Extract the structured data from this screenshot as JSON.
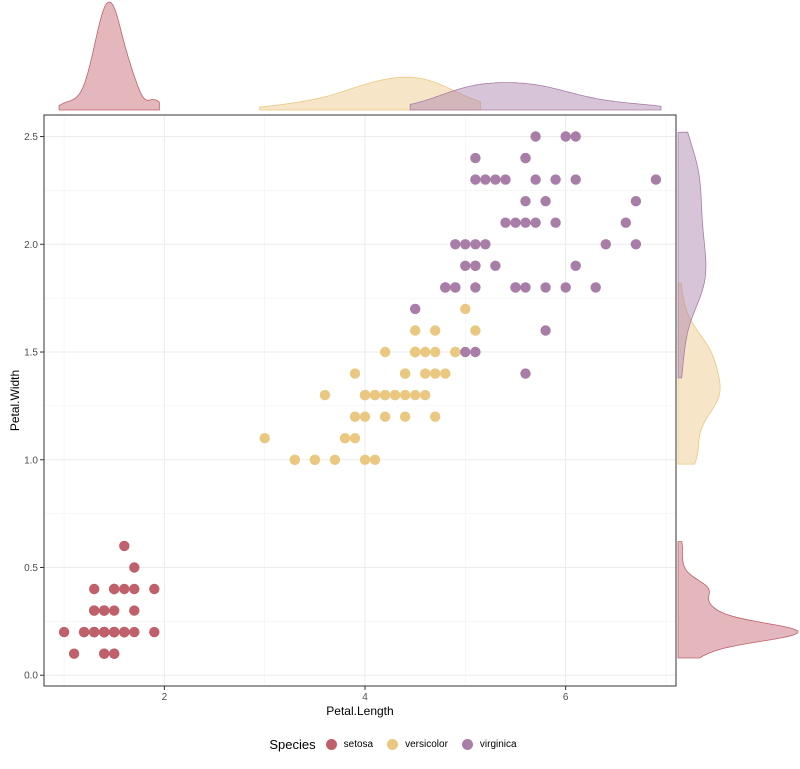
{
  "chart_data": {
    "type": "scatter",
    "title": "",
    "xlabel": "Petal.Length",
    "ylabel": "Petal.Width",
    "xlim": [
      0.8,
      7.1
    ],
    "ylim": [
      -0.05,
      2.6
    ],
    "x_ticks": [
      2,
      4,
      6
    ],
    "x_tick_labels": [
      "2",
      "4",
      "6"
    ],
    "y_ticks": [
      0.0,
      0.5,
      1.0,
      1.5,
      2.0,
      2.5
    ],
    "y_tick_labels": [
      "0.0",
      "0.5",
      "1.0",
      "1.5",
      "2.0",
      "2.5"
    ],
    "grid": true,
    "marginal": "density",
    "legend": {
      "title": "Species",
      "position": "bottom"
    },
    "series": [
      {
        "name": "setosa",
        "color": "#C0606A",
        "points": [
          [
            1.4,
            0.2
          ],
          [
            1.4,
            0.2
          ],
          [
            1.3,
            0.2
          ],
          [
            1.5,
            0.2
          ],
          [
            1.4,
            0.2
          ],
          [
            1.7,
            0.4
          ],
          [
            1.4,
            0.3
          ],
          [
            1.5,
            0.2
          ],
          [
            1.4,
            0.2
          ],
          [
            1.5,
            0.1
          ],
          [
            1.5,
            0.2
          ],
          [
            1.6,
            0.2
          ],
          [
            1.4,
            0.1
          ],
          [
            1.1,
            0.1
          ],
          [
            1.2,
            0.2
          ],
          [
            1.5,
            0.4
          ],
          [
            1.3,
            0.4
          ],
          [
            1.4,
            0.3
          ],
          [
            1.7,
            0.3
          ],
          [
            1.5,
            0.3
          ],
          [
            1.7,
            0.2
          ],
          [
            1.5,
            0.4
          ],
          [
            1.0,
            0.2
          ],
          [
            1.7,
            0.5
          ],
          [
            1.9,
            0.2
          ],
          [
            1.6,
            0.2
          ],
          [
            1.6,
            0.4
          ],
          [
            1.5,
            0.2
          ],
          [
            1.4,
            0.2
          ],
          [
            1.6,
            0.2
          ],
          [
            1.6,
            0.2
          ],
          [
            1.5,
            0.4
          ],
          [
            1.5,
            0.1
          ],
          [
            1.4,
            0.2
          ],
          [
            1.5,
            0.2
          ],
          [
            1.2,
            0.2
          ],
          [
            1.3,
            0.2
          ],
          [
            1.4,
            0.1
          ],
          [
            1.3,
            0.2
          ],
          [
            1.5,
            0.2
          ],
          [
            1.3,
            0.3
          ],
          [
            1.3,
            0.3
          ],
          [
            1.3,
            0.2
          ],
          [
            1.6,
            0.6
          ],
          [
            1.9,
            0.4
          ],
          [
            1.4,
            0.3
          ],
          [
            1.6,
            0.2
          ],
          [
            1.4,
            0.2
          ],
          [
            1.5,
            0.2
          ],
          [
            1.4,
            0.2
          ]
        ]
      },
      {
        "name": "versicolor",
        "color": "#EAC882",
        "points": [
          [
            4.7,
            1.4
          ],
          [
            4.5,
            1.5
          ],
          [
            4.9,
            1.5
          ],
          [
            4.0,
            1.3
          ],
          [
            4.6,
            1.5
          ],
          [
            4.5,
            1.3
          ],
          [
            4.7,
            1.6
          ],
          [
            3.3,
            1.0
          ],
          [
            4.6,
            1.3
          ],
          [
            3.9,
            1.4
          ],
          [
            3.5,
            1.0
          ],
          [
            4.2,
            1.5
          ],
          [
            4.0,
            1.0
          ],
          [
            4.7,
            1.4
          ],
          [
            3.6,
            1.3
          ],
          [
            4.4,
            1.4
          ],
          [
            4.5,
            1.5
          ],
          [
            4.1,
            1.0
          ],
          [
            4.5,
            1.5
          ],
          [
            3.9,
            1.1
          ],
          [
            4.8,
            1.8
          ],
          [
            4.0,
            1.3
          ],
          [
            4.9,
            1.5
          ],
          [
            4.7,
            1.2
          ],
          [
            4.3,
            1.3
          ],
          [
            4.4,
            1.4
          ],
          [
            4.8,
            1.4
          ],
          [
            5.0,
            1.7
          ],
          [
            4.5,
            1.5
          ],
          [
            3.5,
            1.0
          ],
          [
            3.8,
            1.1
          ],
          [
            3.7,
            1.0
          ],
          [
            3.9,
            1.2
          ],
          [
            5.1,
            1.6
          ],
          [
            4.5,
            1.5
          ],
          [
            4.5,
            1.6
          ],
          [
            4.7,
            1.5
          ],
          [
            4.4,
            1.3
          ],
          [
            4.1,
            1.3
          ],
          [
            4.0,
            1.3
          ],
          [
            4.4,
            1.2
          ],
          [
            4.6,
            1.4
          ],
          [
            4.0,
            1.2
          ],
          [
            3.3,
            1.0
          ],
          [
            4.2,
            1.3
          ],
          [
            4.2,
            1.2
          ],
          [
            4.2,
            1.3
          ],
          [
            4.3,
            1.3
          ],
          [
            3.0,
            1.1
          ],
          [
            4.1,
            1.3
          ]
        ]
      },
      {
        "name": "virginica",
        "color": "#A87DA8",
        "points": [
          [
            6.0,
            2.5
          ],
          [
            5.1,
            1.9
          ],
          [
            5.9,
            2.1
          ],
          [
            5.6,
            1.8
          ],
          [
            5.8,
            2.2
          ],
          [
            6.6,
            2.1
          ],
          [
            4.5,
            1.7
          ],
          [
            6.3,
            1.8
          ],
          [
            5.8,
            1.8
          ],
          [
            6.1,
            2.5
          ],
          [
            5.1,
            2.0
          ],
          [
            5.3,
            1.9
          ],
          [
            5.5,
            2.1
          ],
          [
            5.0,
            2.0
          ],
          [
            5.1,
            2.4
          ],
          [
            5.3,
            2.3
          ],
          [
            5.5,
            1.8
          ],
          [
            6.7,
            2.2
          ],
          [
            6.9,
            2.3
          ],
          [
            5.0,
            1.5
          ],
          [
            5.7,
            2.3
          ],
          [
            4.9,
            2.0
          ],
          [
            6.7,
            2.0
          ],
          [
            4.9,
            1.8
          ],
          [
            5.7,
            2.1
          ],
          [
            6.0,
            1.8
          ],
          [
            4.8,
            1.8
          ],
          [
            4.9,
            1.8
          ],
          [
            5.6,
            2.1
          ],
          [
            5.8,
            1.6
          ],
          [
            6.1,
            1.9
          ],
          [
            6.4,
            2.0
          ],
          [
            5.6,
            2.2
          ],
          [
            5.1,
            1.5
          ],
          [
            5.6,
            1.4
          ],
          [
            6.1,
            2.3
          ],
          [
            5.6,
            2.4
          ],
          [
            5.5,
            1.8
          ],
          [
            4.8,
            1.8
          ],
          [
            5.4,
            2.1
          ],
          [
            5.6,
            2.4
          ],
          [
            5.1,
            2.3
          ],
          [
            5.1,
            1.9
          ],
          [
            5.9,
            2.3
          ],
          [
            5.7,
            2.5
          ],
          [
            5.2,
            2.3
          ],
          [
            5.0,
            1.9
          ],
          [
            5.2,
            2.0
          ],
          [
            5.4,
            2.3
          ],
          [
            5.1,
            1.8
          ]
        ]
      }
    ]
  }
}
